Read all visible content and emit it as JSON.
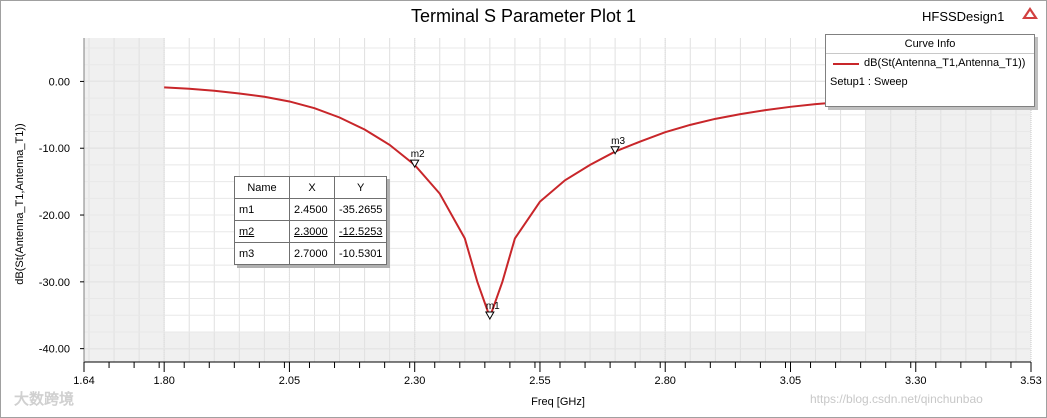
{
  "title": "Terminal S Parameter Plot 1",
  "design_name": "HFSSDesign1",
  "legend": {
    "header": "Curve Info",
    "series_label": "dB(St(Antenna_T1,Antenna_T1))",
    "setup_label": "Setup1 : Sweep"
  },
  "marker_table": {
    "headers": [
      "Name",
      "X",
      "Y"
    ],
    "rows": [
      {
        "name": "m1",
        "x": "2.4500",
        "y": "-35.2655"
      },
      {
        "name": "m2",
        "x": "2.3000",
        "y": "-12.5253"
      },
      {
        "name": "m3",
        "x": "2.7000",
        "y": "-10.5301"
      }
    ]
  },
  "watermark": "https://blog.csdn.net/qinchunbao",
  "watermark_logo": "大数跨境",
  "colors": {
    "curve": "#c8262a",
    "plot_bg_shade": "#f0f0f0"
  },
  "chart_data": {
    "type": "line",
    "title": "Terminal S Parameter Plot 1",
    "xlabel": "Freq [GHz]",
    "ylabel": "dB(St(Antenna_T1,Antenna_T1))",
    "xlim": [
      1.64,
      3.53
    ],
    "ylim": [
      -42,
      6.5
    ],
    "x_ticks": [
      1.64,
      1.8,
      2.05,
      2.3,
      2.55,
      2.8,
      3.05,
      3.3,
      3.53
    ],
    "x_tick_labels": [
      "1.64",
      "1.80",
      "2.05",
      "2.30",
      "2.55",
      "2.80",
      "3.05",
      "3.30",
      "3.53"
    ],
    "y_ticks": [
      0,
      -10,
      -20,
      -30,
      -40
    ],
    "y_tick_labels": [
      "0.00",
      "-10.00",
      "-20.00",
      "-30.00",
      "-40.00"
    ],
    "grid": true,
    "legend_position": "top-right",
    "series": [
      {
        "name": "dB(St(Antenna_T1,Antenna_T1))",
        "x": [
          1.8,
          1.85,
          1.9,
          1.95,
          2.0,
          2.05,
          2.1,
          2.15,
          2.2,
          2.25,
          2.3,
          2.35,
          2.4,
          2.425,
          2.45,
          2.475,
          2.5,
          2.55,
          2.6,
          2.65,
          2.7,
          2.75,
          2.8,
          2.85,
          2.9,
          2.95,
          3.0,
          3.05,
          3.1,
          3.15,
          3.2
        ],
        "y": [
          -0.9,
          -1.1,
          -1.4,
          -1.8,
          -2.3,
          -3.0,
          -4.0,
          -5.4,
          -7.2,
          -9.5,
          -12.5,
          -16.8,
          -23.5,
          -30.0,
          -35.3,
          -30.0,
          -23.5,
          -18.0,
          -14.8,
          -12.5,
          -10.5,
          -9.0,
          -7.6,
          -6.5,
          -5.6,
          -4.9,
          -4.3,
          -3.8,
          -3.4,
          -3.1,
          -2.8
        ]
      }
    ],
    "markers": [
      {
        "name": "m1",
        "x": 2.45,
        "y": -35.2655
      },
      {
        "name": "m2",
        "x": 2.3,
        "y": -12.5253
      },
      {
        "name": "m3",
        "x": 2.7,
        "y": -10.5301
      }
    ]
  }
}
